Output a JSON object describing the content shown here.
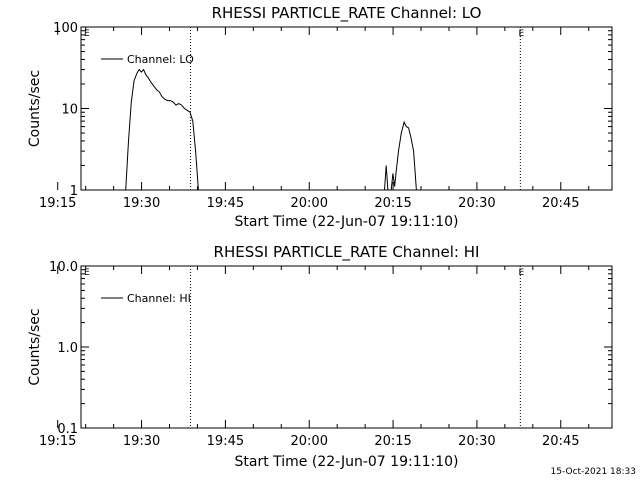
{
  "timestamp": "15-Oct-2021 18:33",
  "chart_data": [
    {
      "type": "line",
      "title": "RHESSI PARTICLE_RATE Channel: LO",
      "ylabel": "Counts/sec",
      "xlabel": "Start Time (22-Jun-07 19:11:10)",
      "y_scale": "log",
      "ylim": [
        1,
        100
      ],
      "y_ticks": [
        "1",
        "10",
        "100"
      ],
      "x_ticks": [
        "19:15",
        "19:30",
        "19:45",
        "20:00",
        "20:15",
        "20:30",
        "20:45"
      ],
      "xlim_minutes": [
        8,
        103
      ],
      "legend": "Channel: LO",
      "legend_position": "top-left",
      "markers": [
        {
          "minute": 27.6,
          "label": ""
        },
        {
          "minute": 86.6,
          "label": "E"
        },
        {
          "minute": 103.6,
          "label": ""
        }
      ],
      "corner_label": "E",
      "series": [
        {
          "name": "Channel: LO",
          "segments": [
            [
              [
                16.0,
                1
              ],
              [
                16.5,
                4
              ],
              [
                17.0,
                12
              ],
              [
                17.5,
                22
              ],
              [
                18.0,
                27
              ],
              [
                18.4,
                30
              ],
              [
                18.8,
                28
              ],
              [
                19.2,
                30
              ],
              [
                19.6,
                26
              ],
              [
                20.0,
                24
              ],
              [
                20.5,
                21
              ],
              [
                21.0,
                19
              ],
              [
                21.5,
                17
              ],
              [
                22.0,
                16
              ],
              [
                22.5,
                14
              ],
              [
                23.0,
                13
              ],
              [
                23.5,
                12.5
              ],
              [
                24.0,
                12.5
              ],
              [
                24.5,
                12
              ],
              [
                25.0,
                11
              ],
              [
                25.5,
                11.5
              ],
              [
                26.0,
                11
              ],
              [
                26.5,
                10
              ],
              [
                27.0,
                9.5
              ],
              [
                27.5,
                9
              ],
              [
                28.0,
                7
              ],
              [
                28.5,
                3
              ],
              [
                29.0,
                1
              ]
            ],
            [
              [
                62.3,
                1
              ],
              [
                62.6,
                2
              ],
              [
                62.9,
                1
              ]
            ],
            [
              [
                63.5,
                1
              ],
              [
                63.8,
                1.6
              ],
              [
                64.1,
                1.1
              ],
              [
                64.4,
                1.7
              ],
              [
                64.8,
                3
              ],
              [
                65.3,
                5
              ],
              [
                65.8,
                6.8
              ],
              [
                66.2,
                6
              ],
              [
                66.6,
                5.8
              ],
              [
                67.0,
                4.5
              ],
              [
                67.5,
                3
              ],
              [
                68.0,
                1
              ]
            ]
          ]
        }
      ]
    },
    {
      "type": "line",
      "title": "RHESSI PARTICLE_RATE Channel: HI",
      "ylabel": "Counts/sec",
      "xlabel": "Start Time (22-Jun-07 19:11:10)",
      "y_scale": "log",
      "ylim": [
        0.1,
        10
      ],
      "y_ticks": [
        "0.1",
        "1.0",
        "10.0"
      ],
      "x_ticks": [
        "19:15",
        "19:30",
        "19:45",
        "20:00",
        "20:15",
        "20:30",
        "20:45"
      ],
      "xlim_minutes": [
        8,
        103
      ],
      "legend": "Channel: HI",
      "legend_position": "top-left",
      "markers": [
        {
          "minute": 27.6,
          "label": ""
        },
        {
          "minute": 86.6,
          "label": "E"
        },
        {
          "minute": 103.6,
          "label": ""
        }
      ],
      "corner_label": "E",
      "series": [
        {
          "name": "Channel: HI",
          "segments": []
        }
      ]
    }
  ]
}
